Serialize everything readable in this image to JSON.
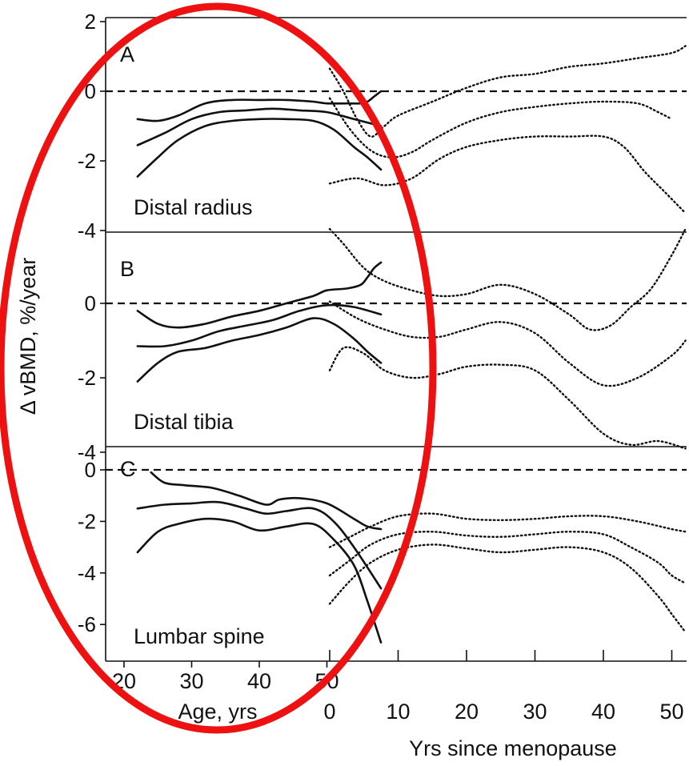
{
  "figure": {
    "ylabel": "Δ vBMD, %/year",
    "age_axis_label": "Age, yrs",
    "menopause_axis_label": "Yrs since menopause",
    "age_ticks": [
      "20",
      "30",
      "40",
      "50"
    ],
    "menopause_ticks": [
      "0",
      "10",
      "20",
      "30",
      "40",
      "50"
    ],
    "highlight_color": "#ee1111",
    "line_color": "#111111"
  },
  "chart_data": [
    {
      "panel": "A",
      "site": "Distal radius",
      "type": "line",
      "ylim": [
        -4,
        2
      ],
      "yticks": [
        "2",
        "0",
        "-2",
        "-4"
      ],
      "age_lines": [
        {
          "style": "solid",
          "x": [
            22,
            25,
            28,
            32,
            36,
            40,
            44,
            48,
            50,
            53,
            55,
            56,
            57,
            58
          ],
          "y": [
            -0.8,
            -0.85,
            -0.7,
            -0.35,
            -0.25,
            -0.25,
            -0.25,
            -0.3,
            -0.35,
            -0.35,
            -0.35,
            -0.3,
            -0.15,
            0
          ]
        },
        {
          "style": "solid",
          "x": [
            22,
            26,
            30,
            34,
            38,
            42,
            46,
            50,
            54,
            58
          ],
          "y": [
            -1.55,
            -1.2,
            -0.8,
            -0.6,
            -0.55,
            -0.5,
            -0.55,
            -0.6,
            -0.8,
            -1.0
          ]
        },
        {
          "style": "solid",
          "x": [
            22,
            25,
            28,
            32,
            36,
            40,
            44,
            48,
            51,
            54,
            56,
            58
          ],
          "y": [
            -2.45,
            -1.9,
            -1.4,
            -1.0,
            -0.85,
            -0.8,
            -0.8,
            -0.85,
            -1.1,
            -1.6,
            -1.9,
            -2.25
          ]
        }
      ],
      "menopause_lines": [
        {
          "style": "dotted",
          "x": [
            0,
            2,
            4,
            6,
            8,
            10,
            15,
            20,
            25,
            30,
            35,
            40,
            45,
            50,
            52
          ],
          "y": [
            0.65,
            0.0,
            -0.8,
            -1.3,
            -1.0,
            -0.7,
            -0.3,
            0.1,
            0.4,
            0.5,
            0.7,
            0.8,
            0.95,
            1.1,
            1.3
          ]
        },
        {
          "style": "dotted",
          "x": [
            0,
            3,
            6,
            9,
            12,
            15,
            20,
            25,
            30,
            35,
            40,
            45,
            48,
            50
          ],
          "y": [
            -0.2,
            -1.1,
            -1.7,
            -1.9,
            -1.75,
            -1.4,
            -0.9,
            -0.6,
            -0.45,
            -0.35,
            -0.3,
            -0.35,
            -0.6,
            -0.8
          ]
        },
        {
          "style": "dotted",
          "x": [
            0,
            4,
            8,
            12,
            16,
            20,
            25,
            30,
            35,
            40,
            43,
            46,
            49,
            52
          ],
          "y": [
            -2.65,
            -2.5,
            -2.7,
            -2.5,
            -1.95,
            -1.6,
            -1.4,
            -1.3,
            -1.3,
            -1.3,
            -1.6,
            -2.3,
            -2.9,
            -3.5
          ]
        }
      ]
    },
    {
      "panel": "B",
      "site": "Distal tibia",
      "type": "line",
      "ylim": [
        -4,
        2
      ],
      "yticks": [
        "0",
        "-2",
        "-4"
      ],
      "age_lines": [
        {
          "style": "solid",
          "x": [
            22,
            25,
            28,
            32,
            36,
            40,
            44,
            48,
            50,
            53,
            55,
            56,
            57,
            58
          ],
          "y": [
            -0.2,
            -0.55,
            -0.65,
            -0.55,
            -0.35,
            -0.2,
            0.0,
            0.2,
            0.35,
            0.4,
            0.5,
            0.7,
            0.95,
            1.1
          ]
        },
        {
          "style": "solid",
          "x": [
            22,
            26,
            30,
            34,
            38,
            42,
            46,
            50,
            54,
            58
          ],
          "y": [
            -1.15,
            -1.15,
            -1.0,
            -0.75,
            -0.6,
            -0.45,
            -0.2,
            -0.05,
            -0.1,
            -0.3
          ]
        },
        {
          "style": "solid",
          "x": [
            22,
            25,
            28,
            32,
            36,
            40,
            44,
            48,
            51,
            54,
            56,
            58
          ],
          "y": [
            -2.1,
            -1.6,
            -1.3,
            -1.2,
            -1.0,
            -0.85,
            -0.65,
            -0.4,
            -0.55,
            -0.95,
            -1.3,
            -1.6
          ]
        }
      ],
      "menopause_lines": [
        {
          "style": "dotted",
          "x": [
            0,
            2,
            5,
            8,
            12,
            16,
            20,
            25,
            30,
            35,
            38,
            41,
            44,
            47,
            50,
            52
          ],
          "y": [
            2.0,
            1.6,
            0.95,
            0.6,
            0.35,
            0.2,
            0.25,
            0.5,
            0.25,
            -0.3,
            -0.7,
            -0.6,
            -0.1,
            0.4,
            1.3,
            2.0
          ]
        },
        {
          "style": "dotted",
          "x": [
            0,
            4,
            8,
            12,
            16,
            20,
            25,
            30,
            35,
            40,
            45,
            50,
            52
          ],
          "y": [
            0.05,
            -0.4,
            -0.7,
            -0.9,
            -0.9,
            -0.7,
            -0.5,
            -0.8,
            -1.6,
            -2.2,
            -2.0,
            -1.4,
            -1.0
          ]
        },
        {
          "style": "dotted",
          "x": [
            0,
            2,
            5,
            8,
            12,
            16,
            20,
            25,
            30,
            35,
            40,
            44,
            48,
            52
          ],
          "y": [
            -1.8,
            -1.2,
            -1.35,
            -1.8,
            -2.0,
            -1.9,
            -1.7,
            -1.65,
            -1.8,
            -2.6,
            -3.5,
            -3.8,
            -3.7,
            -3.9
          ]
        }
      ]
    },
    {
      "panel": "C",
      "site": "Lumbar spine",
      "type": "line",
      "ylim": [
        -7,
        0.6
      ],
      "yticks": [
        "0",
        "-2",
        "-4",
        "-6"
      ],
      "age_lines": [
        {
          "style": "solid",
          "x": [
            24,
            26,
            29,
            33,
            37,
            41,
            43,
            46,
            50,
            54,
            56,
            58
          ],
          "y": [
            -0.1,
            -0.5,
            -0.6,
            -0.7,
            -1.0,
            -1.35,
            -1.15,
            -1.1,
            -1.3,
            -1.9,
            -2.2,
            -2.3
          ]
        },
        {
          "style": "solid",
          "x": [
            22,
            26,
            30,
            34,
            38,
            41,
            44,
            48,
            51,
            54,
            58
          ],
          "y": [
            -1.5,
            -1.35,
            -1.3,
            -1.25,
            -1.5,
            -1.7,
            -1.6,
            -1.5,
            -2.0,
            -3.0,
            -4.6
          ]
        },
        {
          "style": "solid",
          "x": [
            22,
            25,
            28,
            32,
            36,
            40,
            44,
            48,
            51,
            54,
            56,
            58
          ],
          "y": [
            -3.2,
            -2.4,
            -2.1,
            -1.9,
            -2.0,
            -2.35,
            -2.2,
            -2.1,
            -2.7,
            -3.7,
            -5.1,
            -6.7
          ]
        }
      ],
      "menopause_lines": [
        {
          "style": "dotted",
          "x": [
            0,
            3,
            6,
            10,
            15,
            20,
            25,
            30,
            35,
            40,
            45,
            50,
            52
          ],
          "y": [
            -3.0,
            -2.6,
            -2.2,
            -1.8,
            -1.7,
            -1.9,
            -1.95,
            -1.9,
            -1.8,
            -1.8,
            -2.0,
            -2.3,
            -2.4
          ]
        },
        {
          "style": "dotted",
          "x": [
            0,
            3,
            6,
            10,
            15,
            20,
            25,
            30,
            35,
            40,
            44,
            48,
            50,
            52
          ],
          "y": [
            -4.1,
            -3.5,
            -2.9,
            -2.5,
            -2.4,
            -2.55,
            -2.6,
            -2.5,
            -2.4,
            -2.5,
            -3.0,
            -3.6,
            -4.1,
            -4.4
          ]
        },
        {
          "style": "dotted",
          "x": [
            0,
            3,
            6,
            10,
            15,
            20,
            25,
            30,
            35,
            40,
            44,
            48,
            50,
            52
          ],
          "y": [
            -5.2,
            -4.3,
            -3.6,
            -3.1,
            -2.9,
            -3.05,
            -3.2,
            -3.1,
            -3.0,
            -3.2,
            -3.8,
            -4.9,
            -5.6,
            -6.3
          ]
        }
      ]
    }
  ]
}
